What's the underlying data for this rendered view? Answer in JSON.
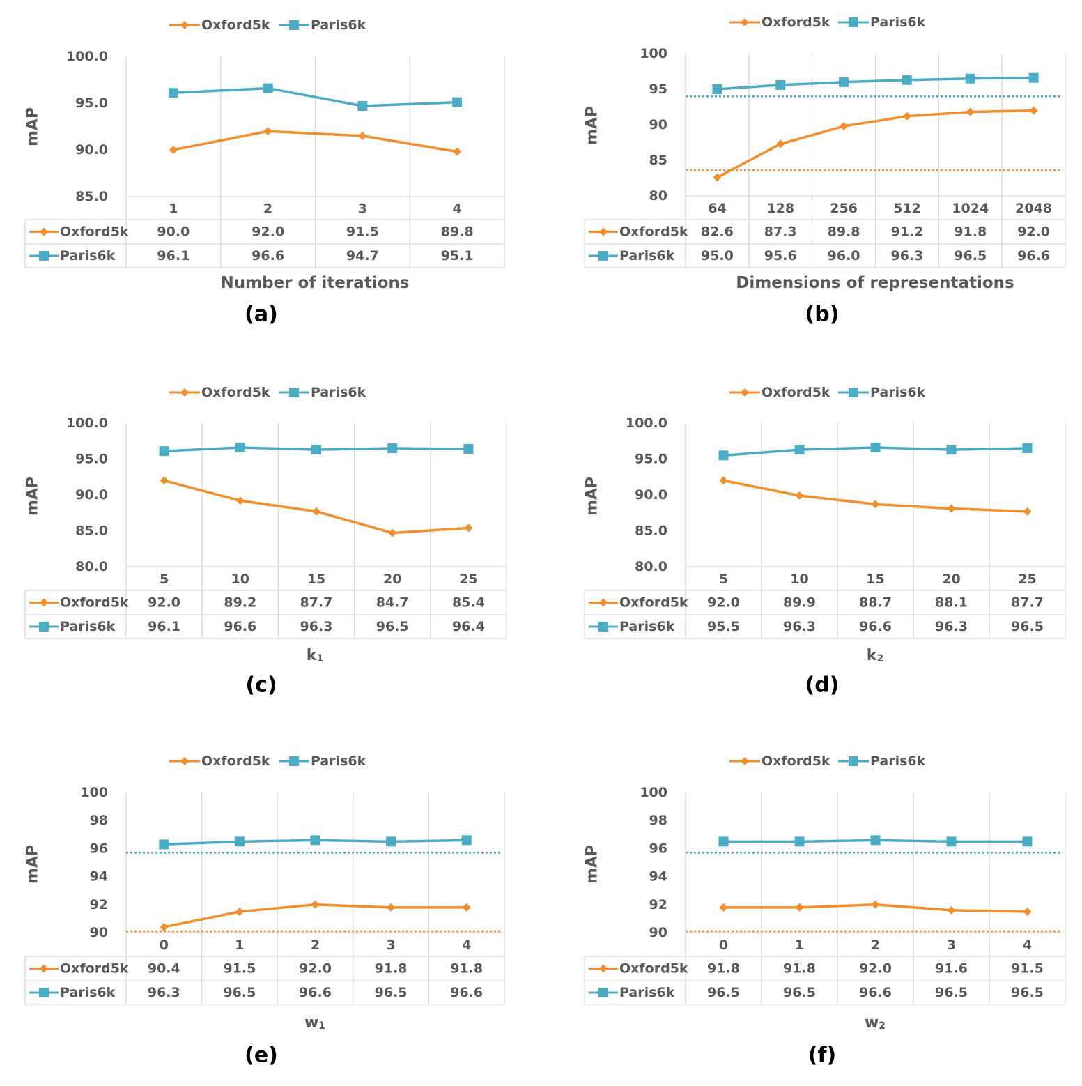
{
  "colors": {
    "oxford": "#F28E2B",
    "paris": "#4AACC5",
    "grid": "#D9D9D9",
    "text": "#595959",
    "caption": "#000000"
  },
  "chart_data": [
    {
      "type": "line",
      "panel_label": "(a)",
      "xlabel": "Number of iterations",
      "xlabel_sub": "",
      "ylabel": "mAP",
      "categories": [
        "1",
        "2",
        "3",
        "4"
      ],
      "ylim": [
        85,
        100
      ],
      "yticks": [
        "85.0",
        "90.0",
        "95.0",
        "100.0"
      ],
      "legend_position": "top",
      "data_table": true,
      "grid": "vertical",
      "series": [
        {
          "name": "Oxford5k",
          "values": [
            90.0,
            92.0,
            91.5,
            89.8
          ],
          "table_values": [
            "90.0",
            "92.0",
            "91.5",
            "89.8"
          ],
          "marker": "diamond",
          "color": "#F28E2B"
        },
        {
          "name": "Paris6k",
          "values": [
            96.1,
            96.6,
            94.7,
            95.1
          ],
          "table_values": [
            "96.1",
            "96.6",
            "94.7",
            "95.1"
          ],
          "marker": "square",
          "color": "#4AACC5"
        }
      ],
      "reference_lines": []
    },
    {
      "type": "line",
      "panel_label": "(b)",
      "xlabel": "Dimensions of  representations",
      "xlabel_sub": "",
      "ylabel": "mAP",
      "categories": [
        "64",
        "128",
        "256",
        "512",
        "1024",
        "2048"
      ],
      "ylim": [
        80,
        100
      ],
      "yticks": [
        "80",
        "85",
        "90",
        "95",
        "100"
      ],
      "legend_position": "top",
      "data_table": true,
      "grid": "vertical",
      "series": [
        {
          "name": "Oxford5k",
          "values": [
            82.6,
            87.3,
            89.8,
            91.2,
            91.8,
            92.0
          ],
          "table_values": [
            "82.6",
            "87.3",
            "89.8",
            "91.2",
            "91.8",
            "92.0"
          ],
          "marker": "diamond",
          "color": "#F28E2B"
        },
        {
          "name": "Paris6k",
          "values": [
            95.0,
            95.6,
            96.0,
            96.3,
            96.5,
            96.6
          ],
          "table_values": [
            "95.0",
            "95.6",
            "96.0",
            "96.3",
            "96.5",
            "96.6"
          ],
          "marker": "square",
          "color": "#4AACC5"
        }
      ],
      "reference_lines": [
        {
          "value": 94.0,
          "color": "#4AACC5"
        },
        {
          "value": 83.6,
          "color": "#F28E2B"
        }
      ]
    },
    {
      "type": "line",
      "panel_label": "(c)",
      "xlabel": "k",
      "xlabel_sub": "1",
      "ylabel": "mAP",
      "categories": [
        "5",
        "10",
        "15",
        "20",
        "25"
      ],
      "ylim": [
        80,
        100
      ],
      "yticks": [
        "80.0",
        "85.0",
        "90.0",
        "95.0",
        "100.0"
      ],
      "legend_position": "top",
      "data_table": true,
      "grid": "vertical",
      "series": [
        {
          "name": "Oxford5k",
          "values": [
            92.0,
            89.2,
            87.7,
            84.7,
            85.4
          ],
          "table_values": [
            "92.0",
            "89.2",
            "87.7",
            "84.7",
            "85.4"
          ],
          "marker": "diamond",
          "color": "#F28E2B"
        },
        {
          "name": "Paris6k",
          "values": [
            96.1,
            96.6,
            96.3,
            96.5,
            96.4
          ],
          "table_values": [
            "96.1",
            "96.6",
            "96.3",
            "96.5",
            "96.4"
          ],
          "marker": "square",
          "color": "#4AACC5"
        }
      ],
      "reference_lines": []
    },
    {
      "type": "line",
      "panel_label": "(d)",
      "xlabel": "k",
      "xlabel_sub": "2",
      "ylabel": "mAP",
      "categories": [
        "5",
        "10",
        "15",
        "20",
        "25"
      ],
      "ylim": [
        80,
        100
      ],
      "yticks": [
        "80.0",
        "85.0",
        "90.0",
        "95.0",
        "100.0"
      ],
      "legend_position": "top",
      "data_table": true,
      "grid": "vertical",
      "series": [
        {
          "name": "Oxford5k",
          "values": [
            92.0,
            89.9,
            88.7,
            88.1,
            87.7
          ],
          "table_values": [
            "92.0",
            "89.9",
            "88.7",
            "88.1",
            "87.7"
          ],
          "marker": "diamond",
          "color": "#F28E2B"
        },
        {
          "name": "Paris6k",
          "values": [
            95.5,
            96.3,
            96.6,
            96.3,
            96.5
          ],
          "table_values": [
            "95.5",
            "96.3",
            "96.6",
            "96.3",
            "96.5"
          ],
          "marker": "square",
          "color": "#4AACC5"
        }
      ],
      "reference_lines": []
    },
    {
      "type": "line",
      "panel_label": "(e)",
      "xlabel": "w",
      "xlabel_sub": "1",
      "ylabel": "mAP",
      "categories": [
        "0",
        "1",
        "2",
        "3",
        "4"
      ],
      "ylim": [
        90,
        100
      ],
      "yticks": [
        "90",
        "92",
        "94",
        "96",
        "98",
        "100"
      ],
      "legend_position": "top",
      "data_table": true,
      "grid": "vertical",
      "series": [
        {
          "name": "Oxford5k",
          "values": [
            90.4,
            91.5,
            92.0,
            91.8,
            91.8
          ],
          "table_values": [
            "90.4",
            "91.5",
            "92.0",
            "91.8",
            "91.8"
          ],
          "marker": "diamond",
          "color": "#F28E2B"
        },
        {
          "name": "Paris6k",
          "values": [
            96.3,
            96.5,
            96.6,
            96.5,
            96.6
          ],
          "table_values": [
            "96.3",
            "96.5",
            "96.6",
            "96.5",
            "96.6"
          ],
          "marker": "square",
          "color": "#4AACC5"
        }
      ],
      "reference_lines": [
        {
          "value": 95.7,
          "color": "#4AACC5"
        },
        {
          "value": 90.1,
          "color": "#F28E2B"
        }
      ]
    },
    {
      "type": "line",
      "panel_label": "(f)",
      "xlabel": "w",
      "xlabel_sub": "2",
      "ylabel": "mAP",
      "categories": [
        "0",
        "1",
        "2",
        "3",
        "4"
      ],
      "ylim": [
        90,
        100
      ],
      "yticks": [
        "90",
        "92",
        "94",
        "96",
        "98",
        "100"
      ],
      "legend_position": "top",
      "data_table": true,
      "grid": "vertical",
      "series": [
        {
          "name": "Oxford5k",
          "values": [
            91.8,
            91.8,
            92.0,
            91.6,
            91.5
          ],
          "table_values": [
            "91.8",
            "91.8",
            "92.0",
            "91.6",
            "91.5"
          ],
          "marker": "diamond",
          "color": "#F28E2B"
        },
        {
          "name": "Paris6k",
          "values": [
            96.5,
            96.5,
            96.6,
            96.5,
            96.5
          ],
          "table_values": [
            "96.5",
            "96.5",
            "96.6",
            "96.5",
            "96.5"
          ],
          "marker": "square",
          "color": "#4AACC5"
        }
      ],
      "reference_lines": [
        {
          "value": 95.7,
          "color": "#4AACC5"
        },
        {
          "value": 90.1,
          "color": "#F28E2B"
        }
      ]
    }
  ]
}
